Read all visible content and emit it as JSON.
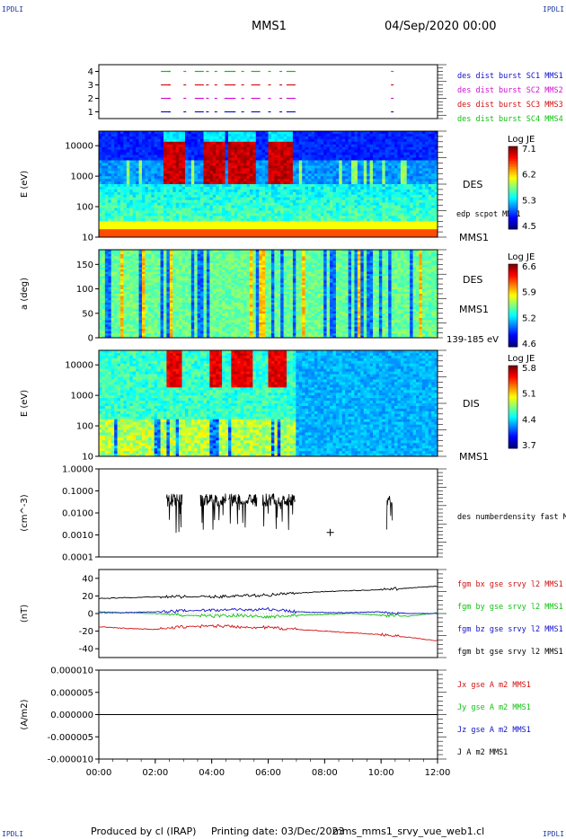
{
  "corners": {
    "top_left": "IPDLI",
    "top_right": "IPDLI",
    "bottom_left": "IPDLI",
    "bottom_right": "IPDLI"
  },
  "header": {
    "title": "MMS1",
    "datetime": "04/Sep/2020 00:00"
  },
  "footer": {
    "produced": "Produced by cl (IRAP)",
    "printing": "Printing date: 03/Dec/2023",
    "file": "mms_mms1_srvy_vue_web1.cl"
  },
  "chart_data": [
    {
      "type": "scatter",
      "ylim": [
        0.5,
        4.5
      ],
      "yticks": [
        "1",
        "2",
        "3",
        "4"
      ],
      "legend": [
        {
          "label": "des dist burst SC1 MMS1",
          "color": "#1010c8"
        },
        {
          "label": "des dist burst SC2 MMS2",
          "color": "#d010d0"
        },
        {
          "label": "des dist burst SC3 MMS3",
          "color": "#d01010"
        },
        {
          "label": "des dist burst SC4 MMS4",
          "color": "#10c010"
        }
      ],
      "x_hours": [
        2.2,
        2.45,
        3.0,
        3.4,
        3.8,
        4.1,
        4.45,
        4.75,
        5.05,
        5.4,
        6.0,
        6.4,
        6.65,
        10.35
      ],
      "spacecraft": [
        1,
        2,
        3,
        4
      ]
    },
    {
      "type": "heatmap",
      "ylabel": "E (eV)",
      "yscale": "log",
      "yticks": [
        "10",
        "100",
        "1000",
        "10000"
      ],
      "ylim": [
        10,
        30000
      ],
      "xlim_hours": [
        0,
        12
      ],
      "instrument": "DES",
      "overlay": "edp scpot MMS1",
      "spacecraft": "MMS1",
      "colorbar": {
        "label": "Log JE",
        "ticks": [
          "7.1",
          "6.2",
          "5.3",
          "4.5"
        ],
        "min": 4.5,
        "max": 7.1
      },
      "hot_intervals_hours": [
        [
          2.3,
          3.0
        ],
        [
          3.7,
          4.5
        ],
        [
          4.6,
          5.6
        ],
        [
          6.0,
          6.9
        ]
      ]
    },
    {
      "type": "heatmap",
      "ylabel": "a (deg)",
      "yticks": [
        "0",
        "50",
        "100",
        "150"
      ],
      "ylim": [
        0,
        180
      ],
      "instrument": "DES",
      "spacecraft": "MMS1",
      "energy_range": "139-185 eV",
      "colorbar": {
        "label": "Log JE",
        "ticks": [
          "6.6",
          "5.9",
          "5.2",
          "4.6"
        ],
        "min": 4.6,
        "max": 6.6
      }
    },
    {
      "type": "heatmap",
      "ylabel": "E (eV)",
      "yscale": "log",
      "yticks": [
        "10",
        "100",
        "1000",
        "10000"
      ],
      "ylim": [
        10,
        30000
      ],
      "instrument": "DIS",
      "spacecraft": "MMS1",
      "colorbar": {
        "label": "Log JE",
        "ticks": [
          "5.8",
          "5.1",
          "4.4",
          "3.7"
        ],
        "min": 3.7,
        "max": 5.8
      },
      "hot_intervals_hours": [
        [
          2.4,
          2.9
        ],
        [
          3.9,
          4.4
        ],
        [
          4.7,
          5.5
        ],
        [
          6.0,
          6.7
        ]
      ]
    },
    {
      "type": "line",
      "ylabel": "(cm^-3)",
      "yscale": "log",
      "yticks": [
        "0.0001",
        "0.0010",
        "0.0100",
        "0.1000",
        "1.0000"
      ],
      "ylim": [
        0.0001,
        1.0
      ],
      "legend": [
        {
          "label": "des numberdensity fast M",
          "color": "#000000"
        }
      ],
      "segments_hours": [
        [
          2.4,
          2.95
        ],
        [
          3.6,
          4.5
        ],
        [
          4.6,
          5.6
        ],
        [
          5.8,
          6.95
        ],
        [
          10.2,
          10.4
        ]
      ],
      "point": {
        "x_hours": 8.2,
        "y": 0.0013
      }
    },
    {
      "type": "line",
      "ylabel": "(nT)",
      "yticks": [
        "-40",
        "-20",
        "0",
        "20",
        "40"
      ],
      "ylim": [
        -50,
        50
      ],
      "series": [
        {
          "name": "fgm bx gse srvy l2 MMS1",
          "color": "#d01010",
          "x_hours": [
            0,
            1,
            2,
            3,
            4,
            5,
            6,
            7,
            8,
            9,
            10,
            11,
            12
          ],
          "values": [
            -15,
            -17,
            -18,
            -15,
            -14,
            -15,
            -16,
            -18,
            -20,
            -22,
            -24,
            -27,
            -31
          ]
        },
        {
          "name": "fgm by gse srvy l2 MMS1",
          "color": "#10c010",
          "x_hours": [
            0,
            1,
            2,
            3,
            4,
            5,
            6,
            7,
            8,
            9,
            10,
            11,
            12
          ],
          "values": [
            2,
            1,
            0,
            -2,
            -3,
            -2,
            -4,
            -2,
            -1,
            0,
            -2,
            -3,
            1
          ]
        },
        {
          "name": "fgm bz gse srvy l2 MMS1",
          "color": "#1010c8",
          "x_hours": [
            0,
            1,
            2,
            3,
            4,
            5,
            6,
            7,
            8,
            9,
            10,
            11,
            12
          ],
          "values": [
            1,
            1,
            2,
            3,
            4,
            4,
            5,
            2,
            1,
            1,
            2,
            0,
            0
          ]
        },
        {
          "name": "fgm bt gse srvy l2 MMS1",
          "color": "#000000",
          "x_hours": [
            0,
            1,
            2,
            3,
            4,
            5,
            6,
            7,
            8,
            9,
            10,
            11,
            12
          ],
          "values": [
            17,
            18,
            19,
            19,
            19,
            20,
            21,
            23,
            25,
            26,
            27,
            29,
            31
          ]
        }
      ]
    },
    {
      "type": "line",
      "ylabel": "(A/m2)",
      "yticks": [
        "-0.000010",
        "-0.000005",
        "0.000000",
        "0.000005",
        "0.000010"
      ],
      "ylim": [
        -1e-05,
        1e-05
      ],
      "series": [
        {
          "name": "Jx gse A m2 MMS1",
          "color": "#d01010"
        },
        {
          "name": "Jy gse A m2 MMS1",
          "color": "#10c010"
        },
        {
          "name": "Jz gse A m2 MMS1",
          "color": "#1010c8"
        },
        {
          "name": "J A m2 MMS1",
          "color": "#000000"
        }
      ],
      "xticks": [
        "00:00",
        "02:00",
        "04:00",
        "06:00",
        "08:00",
        "10:00",
        "12:00"
      ],
      "xlim_hours": [
        0,
        12
      ]
    }
  ]
}
